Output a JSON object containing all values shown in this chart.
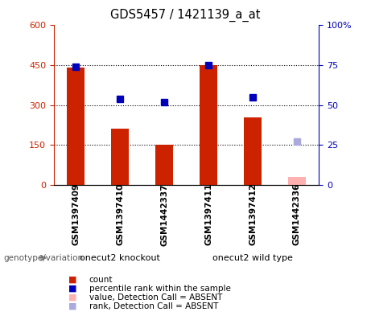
{
  "title": "GDS5457 / 1421139_a_at",
  "samples": [
    "GSM1397409",
    "GSM1397410",
    "GSM1442337",
    "GSM1397411",
    "GSM1397412",
    "GSM1442336"
  ],
  "bar_values": [
    440,
    210,
    152,
    450,
    255,
    30
  ],
  "bar_absent": [
    false,
    false,
    false,
    false,
    false,
    true
  ],
  "rank_values": [
    74,
    54,
    52,
    75,
    55,
    27
  ],
  "rank_absent": [
    false,
    false,
    false,
    false,
    false,
    true
  ],
  "groups": [
    {
      "label": "onecut2 knockout",
      "span": [
        0,
        3
      ],
      "color": "#66dd66"
    },
    {
      "label": "onecut2 wild type",
      "span": [
        3,
        6
      ],
      "color": "#66dd66"
    }
  ],
  "ylim_left": [
    0,
    600
  ],
  "ylim_right": [
    0,
    100
  ],
  "yticks_left": [
    0,
    150,
    300,
    450,
    600
  ],
  "ytick_labels_left": [
    "0",
    "150",
    "300",
    "450",
    "600"
  ],
  "yticks_right": [
    0,
    25,
    50,
    75,
    100
  ],
  "ytick_labels_right": [
    "0",
    "25",
    "50",
    "75",
    "100%"
  ],
  "bar_color": "#cc2200",
  "bar_absent_color": "#ffb0b0",
  "rank_color": "#0000bb",
  "rank_absent_color": "#aaaadd",
  "legend_items": [
    {
      "color": "#cc2200",
      "label": "count"
    },
    {
      "color": "#0000bb",
      "label": "percentile rank within the sample"
    },
    {
      "color": "#ffb0b0",
      "label": "value, Detection Call = ABSENT"
    },
    {
      "color": "#aaaadd",
      "label": "rank, Detection Call = ABSENT"
    }
  ],
  "genotype_label": "genotype/variation",
  "background_color": "#ffffff",
  "plot_bg": "#ffffff",
  "label_bg": "#cccccc",
  "bar_width": 0.4,
  "marker_size": 6
}
